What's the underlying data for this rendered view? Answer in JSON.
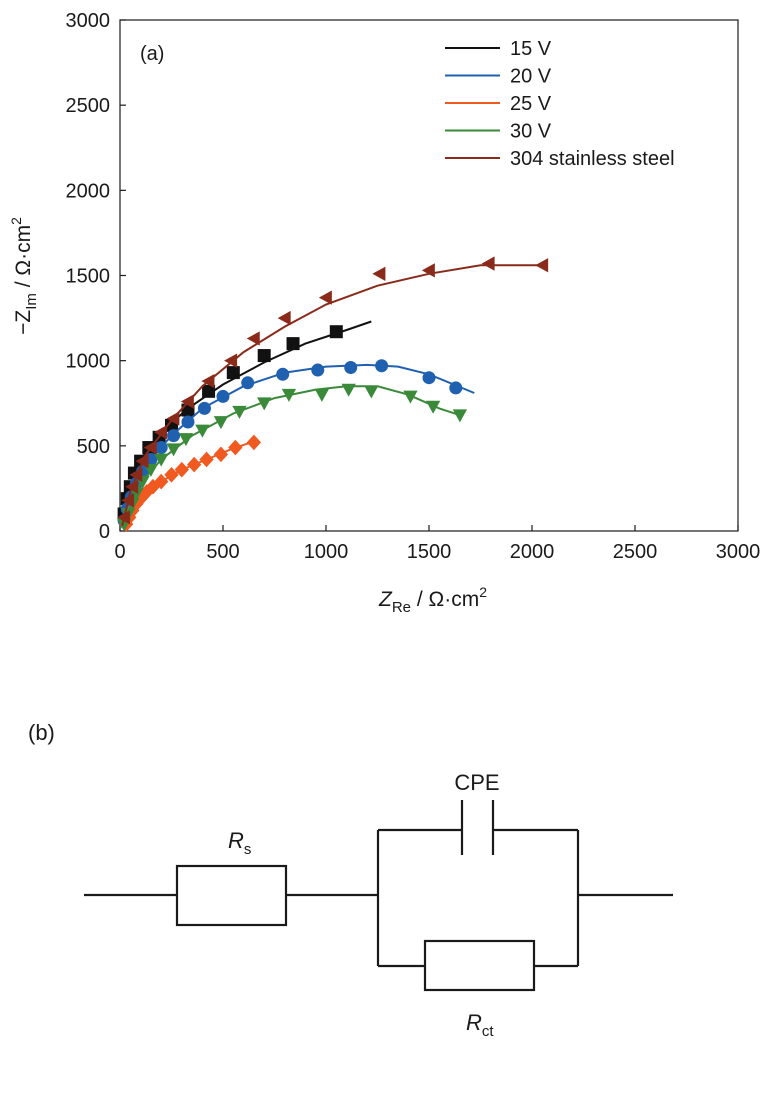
{
  "chart_data": {
    "type": "scatter",
    "panel_label": "(a)",
    "xlabel": {
      "main": "Z",
      "sub": "Re",
      "unit": " / Ω·cm",
      "sup": "2"
    },
    "ylabel": {
      "prefix": "−Z",
      "sub": "Im",
      "unit": " / Ω·cm",
      "sup": "2"
    },
    "xlim": [
      0,
      3000
    ],
    "ylim": [
      0,
      3000
    ],
    "x_ticks": [
      0,
      500,
      1000,
      1500,
      2000,
      2500,
      3000
    ],
    "y_ticks": [
      0,
      500,
      1000,
      1500,
      2000,
      2500,
      3000
    ],
    "legend_position": "top-right",
    "series": [
      {
        "name": "15 V",
        "color": "#111111",
        "marker": "square",
        "points": [
          [
            20,
            100
          ],
          [
            35,
            190
          ],
          [
            50,
            260
          ],
          [
            70,
            340
          ],
          [
            100,
            410
          ],
          [
            140,
            490
          ],
          [
            190,
            550
          ],
          [
            250,
            620
          ],
          [
            330,
            710
          ],
          [
            430,
            820
          ],
          [
            550,
            930
          ],
          [
            700,
            1030
          ],
          [
            840,
            1100
          ],
          [
            1050,
            1170
          ]
        ],
        "fit": [
          [
            10,
            30
          ],
          [
            40,
            220
          ],
          [
            100,
            420
          ],
          [
            200,
            580
          ],
          [
            330,
            720
          ],
          [
            500,
            860
          ],
          [
            700,
            990
          ],
          [
            900,
            1100
          ],
          [
            1100,
            1180
          ],
          [
            1220,
            1230
          ]
        ]
      },
      {
        "name": "20 V",
        "color": "#2060b0",
        "marker": "circle",
        "points": [
          [
            20,
            60
          ],
          [
            35,
            130
          ],
          [
            55,
            200
          ],
          [
            80,
            280
          ],
          [
            110,
            350
          ],
          [
            150,
            420
          ],
          [
            200,
            490
          ],
          [
            260,
            560
          ],
          [
            330,
            640
          ],
          [
            410,
            720
          ],
          [
            500,
            790
          ],
          [
            620,
            870
          ],
          [
            790,
            920
          ],
          [
            960,
            945
          ],
          [
            1120,
            960
          ],
          [
            1270,
            970
          ],
          [
            1500,
            900
          ],
          [
            1630,
            840
          ]
        ],
        "fit": [
          [
            10,
            20
          ],
          [
            50,
            200
          ],
          [
            120,
            380
          ],
          [
            250,
            560
          ],
          [
            400,
            720
          ],
          [
            600,
            850
          ],
          [
            800,
            930
          ],
          [
            1000,
            965
          ],
          [
            1200,
            975
          ],
          [
            1350,
            965
          ],
          [
            1500,
            920
          ],
          [
            1620,
            860
          ],
          [
            1720,
            810
          ]
        ]
      },
      {
        "name": "25 V",
        "color": "#f05a20",
        "marker": "diamond",
        "points": [
          [
            30,
            40
          ],
          [
            45,
            80
          ],
          [
            60,
            120
          ],
          [
            80,
            160
          ],
          [
            100,
            190
          ],
          [
            130,
            230
          ],
          [
            160,
            260
          ],
          [
            200,
            290
          ],
          [
            250,
            330
          ],
          [
            300,
            360
          ],
          [
            360,
            390
          ],
          [
            420,
            420
          ],
          [
            490,
            450
          ],
          [
            560,
            490
          ],
          [
            650,
            520
          ]
        ],
        "fit": [
          [
            20,
            20
          ],
          [
            50,
            90
          ],
          [
            100,
            190
          ],
          [
            200,
            290
          ],
          [
            300,
            360
          ],
          [
            420,
            420
          ],
          [
            540,
            480
          ],
          [
            660,
            530
          ]
        ]
      },
      {
        "name": "30 V",
        "color": "#3a8a3a",
        "marker": "triangle-down",
        "points": [
          [
            20,
            40
          ],
          [
            40,
            100
          ],
          [
            60,
            160
          ],
          [
            80,
            220
          ],
          [
            110,
            290
          ],
          [
            150,
            360
          ],
          [
            200,
            420
          ],
          [
            260,
            480
          ],
          [
            320,
            540
          ],
          [
            400,
            590
          ],
          [
            490,
            640
          ],
          [
            580,
            700
          ],
          [
            700,
            750
          ],
          [
            820,
            800
          ],
          [
            980,
            800
          ],
          [
            1110,
            830
          ],
          [
            1220,
            820
          ],
          [
            1410,
            790
          ],
          [
            1520,
            730
          ],
          [
            1650,
            680
          ]
        ],
        "fit": [
          [
            10,
            15
          ],
          [
            40,
            110
          ],
          [
            100,
            280
          ],
          [
            200,
            420
          ],
          [
            350,
            560
          ],
          [
            550,
            690
          ],
          [
            750,
            780
          ],
          [
            950,
            830
          ],
          [
            1100,
            850
          ],
          [
            1250,
            850
          ],
          [
            1400,
            800
          ],
          [
            1550,
            720
          ],
          [
            1650,
            680
          ]
        ]
      },
      {
        "name": "304 stainless steel",
        "color": "#8a2a1a",
        "marker": "triangle-left",
        "points": [
          [
            20,
            80
          ],
          [
            40,
            180
          ],
          [
            60,
            260
          ],
          [
            80,
            330
          ],
          [
            110,
            410
          ],
          [
            150,
            490
          ],
          [
            200,
            580
          ],
          [
            260,
            660
          ],
          [
            330,
            760
          ],
          [
            430,
            880
          ],
          [
            540,
            1000
          ],
          [
            650,
            1130
          ],
          [
            800,
            1250
          ],
          [
            1000,
            1370
          ],
          [
            1260,
            1510
          ],
          [
            1500,
            1530
          ],
          [
            1790,
            1570
          ],
          [
            2050,
            1560
          ]
        ],
        "fit": [
          [
            10,
            30
          ],
          [
            50,
            230
          ],
          [
            120,
            440
          ],
          [
            250,
            650
          ],
          [
            400,
            850
          ],
          [
            600,
            1050
          ],
          [
            800,
            1200
          ],
          [
            1000,
            1330
          ],
          [
            1250,
            1440
          ],
          [
            1500,
            1510
          ],
          [
            1750,
            1560
          ],
          [
            2050,
            1560
          ]
        ]
      }
    ]
  },
  "circuit": {
    "panel_label": "(b)",
    "rs_label": {
      "main": "R",
      "sub": "s"
    },
    "cpe_label": "CPE",
    "rct_label": {
      "main": "R",
      "sub": "ct"
    }
  }
}
